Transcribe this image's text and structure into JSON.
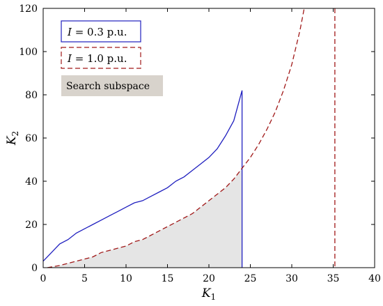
{
  "chart_data": {
    "type": "line",
    "title": "",
    "xlabel": "K",
    "xlabel_sub": "1",
    "ylabel": "K",
    "ylabel_sub": "2",
    "xlim": [
      0,
      40
    ],
    "ylim": [
      0,
      120
    ],
    "xticks": [
      0,
      5,
      10,
      15,
      20,
      25,
      30,
      35,
      40
    ],
    "yticks": [
      0,
      20,
      40,
      60,
      80,
      100,
      120
    ],
    "grid": false,
    "legend_position": "top-left",
    "series": [
      {
        "name": "I = 0.3 p.u.",
        "name_italic": "I",
        "name_rest": " = 0.3 p.u.",
        "color": "#1f1fbf",
        "style": "solid",
        "points": [
          [
            0,
            3
          ],
          [
            1,
            7
          ],
          [
            2,
            11
          ],
          [
            3,
            13
          ],
          [
            4,
            16
          ],
          [
            5,
            18
          ],
          [
            6,
            20
          ],
          [
            7,
            22
          ],
          [
            8,
            24
          ],
          [
            9,
            26
          ],
          [
            10,
            28
          ],
          [
            11,
            30
          ],
          [
            12,
            31
          ],
          [
            13,
            33
          ],
          [
            14,
            35
          ],
          [
            15,
            37
          ],
          [
            16,
            40
          ],
          [
            17,
            42
          ],
          [
            18,
            45
          ],
          [
            19,
            48
          ],
          [
            20,
            51
          ],
          [
            21,
            55
          ],
          [
            22,
            61
          ],
          [
            23,
            68
          ],
          [
            24,
            82
          ],
          [
            24,
            0
          ]
        ]
      },
      {
        "name": "I = 1.0 p.u.",
        "name_italic": "I",
        "name_rest": " = 1.0 p.u.",
        "color": "#a01818",
        "style": "dashed",
        "points": [
          [
            0.5,
            0
          ],
          [
            2,
            1
          ],
          [
            4,
            3
          ],
          [
            6,
            5
          ],
          [
            7,
            7
          ],
          [
            8,
            8
          ],
          [
            10,
            10
          ],
          [
            11,
            12
          ],
          [
            12,
            13
          ],
          [
            13,
            15
          ],
          [
            14,
            17
          ],
          [
            15,
            19
          ],
          [
            16,
            21
          ],
          [
            17,
            23
          ],
          [
            18,
            25
          ],
          [
            19,
            28
          ],
          [
            20,
            31
          ],
          [
            21,
            34
          ],
          [
            22,
            37
          ],
          [
            23,
            41
          ],
          [
            24,
            46
          ],
          [
            25,
            51
          ],
          [
            26,
            57
          ],
          [
            27,
            64
          ],
          [
            28,
            72
          ],
          [
            29,
            82
          ],
          [
            30,
            94
          ],
          [
            31,
            110
          ],
          [
            31.5,
            120
          ]
        ],
        "vertical_asymptote": 35.2
      }
    ],
    "shaded_region": {
      "label": "Search subspace",
      "color": "#e5e5e5",
      "label_bg": "#d8d3cc",
      "upper_boundary": [
        [
          0.5,
          0
        ],
        [
          2,
          1
        ],
        [
          4,
          3
        ],
        [
          6,
          5
        ],
        [
          7,
          7
        ],
        [
          8,
          8
        ],
        [
          10,
          10
        ],
        [
          11,
          12
        ],
        [
          12,
          13
        ],
        [
          13,
          15
        ],
        [
          14,
          17
        ],
        [
          15,
          19
        ],
        [
          16,
          21
        ],
        [
          17,
          23
        ],
        [
          18,
          25
        ],
        [
          19,
          28
        ],
        [
          20,
          31
        ],
        [
          21,
          34
        ],
        [
          22,
          37
        ],
        [
          23,
          41
        ],
        [
          24,
          46
        ]
      ],
      "x_end": 24
    }
  }
}
